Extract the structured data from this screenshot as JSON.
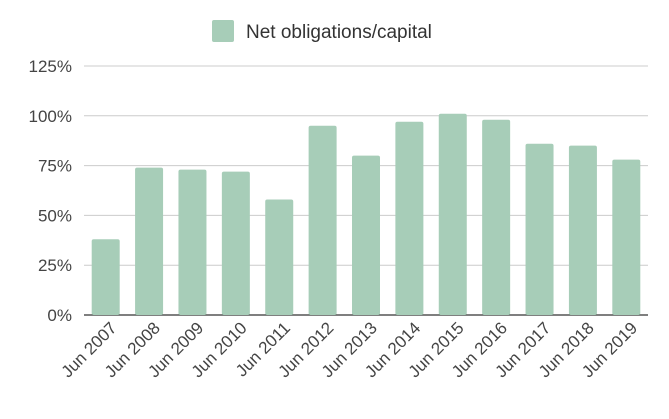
{
  "chart_data": {
    "type": "bar",
    "title": "",
    "xlabel": "",
    "ylabel": "",
    "categories": [
      "Jun 2007",
      "Jun 2008",
      "Jun 2009",
      "Jun 2010",
      "Jun 2011",
      "Jun 2012",
      "Jun 2013",
      "Jun 2014",
      "Jun 2015",
      "Jun 2016",
      "Jun 2017",
      "Jun 2018",
      "Jun 2019"
    ],
    "series": [
      {
        "name": "Net obligations/capital",
        "color": "#a7cdb8",
        "values": [
          38,
          74,
          73,
          72,
          58,
          95,
          80,
          97,
          101,
          98,
          86,
          85,
          78
        ]
      }
    ],
    "ylim": [
      0,
      125
    ],
    "yticks": [
      0,
      25,
      50,
      75,
      100,
      125
    ],
    "ytick_labels": [
      "0%",
      "25%",
      "50%",
      "75%",
      "100%",
      "125%"
    ],
    "grid": true,
    "legend": "top-center"
  }
}
